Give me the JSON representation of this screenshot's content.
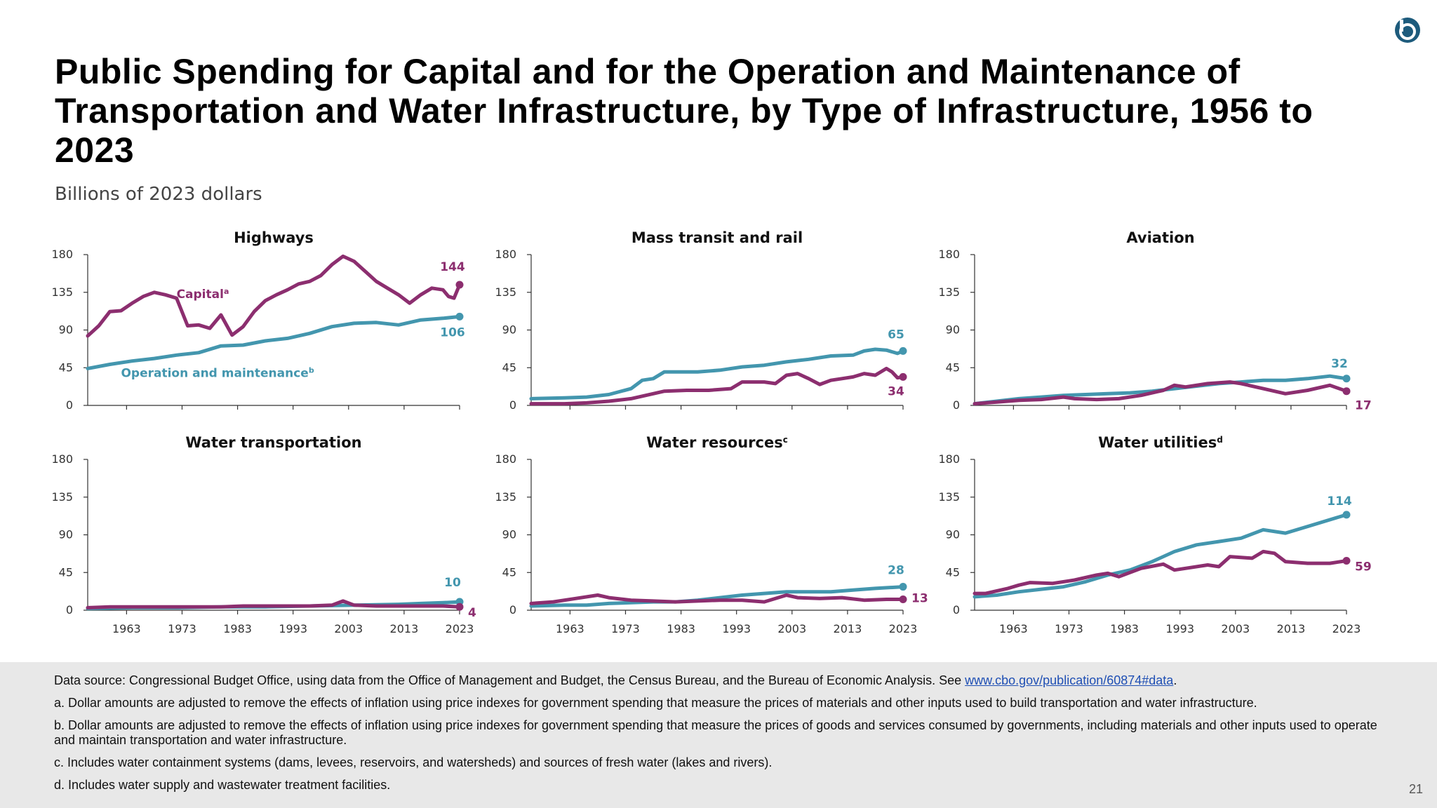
{
  "header": {
    "title": "Public Spending for Capital and for the Operation and Maintenance of Transportation and Water Infrastructure, by Type of Infrastructure, 1956 to 2023",
    "subtitle": "Billions of 2023 dollars",
    "logo_icon": "cbo-logo-icon"
  },
  "colors": {
    "capital": "#8c2e6f",
    "om": "#4396ae"
  },
  "chart_data": [
    {
      "type": "line",
      "title": "Highways",
      "ylim": [
        0,
        180
      ],
      "yticks": [
        0,
        45,
        90,
        135,
        180
      ],
      "xticks": [
        1963,
        1973,
        1983,
        1993,
        2003,
        2013,
        2023
      ],
      "xlim": [
        1956,
        2023
      ],
      "series": [
        {
          "name": "Capital",
          "label": "Capital",
          "sup": "a",
          "end_value": 144,
          "x": [
            1956,
            1958,
            1960,
            1962,
            1964,
            1966,
            1968,
            1970,
            1972,
            1974,
            1976,
            1978,
            1980,
            1982,
            1984,
            1986,
            1988,
            1990,
            1992,
            1994,
            1996,
            1998,
            2000,
            2002,
            2004,
            2006,
            2008,
            2010,
            2012,
            2014,
            2016,
            2018,
            2020,
            2021,
            2022,
            2023
          ],
          "values": [
            83,
            95,
            112,
            113,
            122,
            130,
            135,
            132,
            128,
            95,
            96,
            92,
            108,
            84,
            94,
            112,
            125,
            132,
            138,
            145,
            148,
            155,
            168,
            178,
            172,
            160,
            148,
            140,
            132,
            122,
            132,
            140,
            138,
            130,
            128,
            144
          ]
        },
        {
          "name": "Operation and maintenance",
          "label": "Operation and maintenance",
          "sup": "b",
          "end_value": 106,
          "x": [
            1956,
            1960,
            1964,
            1968,
            1972,
            1976,
            1980,
            1984,
            1988,
            1992,
            1996,
            2000,
            2004,
            2008,
            2012,
            2016,
            2020,
            2023
          ],
          "values": [
            44,
            49,
            53,
            56,
            60,
            63,
            71,
            72,
            77,
            80,
            86,
            94,
            98,
            99,
            96,
            102,
            104,
            106
          ]
        }
      ]
    },
    {
      "type": "line",
      "title": "Mass transit and rail",
      "ylim": [
        0,
        180
      ],
      "yticks": [
        0,
        45,
        90,
        135,
        180
      ],
      "xticks": [
        1963,
        1973,
        1983,
        1993,
        2003,
        2013,
        2023
      ],
      "xlim": [
        1956,
        2023
      ],
      "series": [
        {
          "name": "Capital",
          "end_value": 34,
          "x": [
            1956,
            1962,
            1966,
            1970,
            1974,
            1978,
            1980,
            1984,
            1988,
            1992,
            1994,
            1998,
            2000,
            2002,
            2004,
            2006,
            2008,
            2010,
            2012,
            2014,
            2016,
            2018,
            2020,
            2021,
            2022,
            2023
          ],
          "values": [
            2,
            2,
            3,
            5,
            8,
            14,
            17,
            18,
            18,
            20,
            28,
            28,
            26,
            36,
            38,
            32,
            25,
            30,
            32,
            34,
            38,
            36,
            44,
            40,
            33,
            34
          ]
        },
        {
          "name": "Operation and maintenance",
          "end_value": 65,
          "x": [
            1956,
            1962,
            1966,
            1970,
            1974,
            1976,
            1978,
            1980,
            1982,
            1986,
            1990,
            1994,
            1998,
            2002,
            2006,
            2010,
            2014,
            2016,
            2018,
            2020,
            2022,
            2023
          ],
          "values": [
            8,
            9,
            10,
            13,
            20,
            30,
            32,
            40,
            40,
            40,
            42,
            46,
            48,
            52,
            55,
            59,
            60,
            65,
            67,
            66,
            62,
            65
          ]
        }
      ]
    },
    {
      "type": "line",
      "title": "Aviation",
      "ylim": [
        0,
        180
      ],
      "yticks": [
        0,
        45,
        90,
        135,
        180
      ],
      "xticks": [
        1963,
        1973,
        1983,
        1993,
        2003,
        2013,
        2023
      ],
      "xlim": [
        1956,
        2023
      ],
      "series": [
        {
          "name": "Capital",
          "end_value": 17,
          "x": [
            1956,
            1960,
            1964,
            1968,
            1972,
            1974,
            1978,
            1982,
            1986,
            1990,
            1992,
            1994,
            1998,
            2002,
            2004,
            2008,
            2012,
            2016,
            2020,
            2023
          ],
          "values": [
            2,
            4,
            6,
            7,
            10,
            8,
            7,
            8,
            12,
            18,
            24,
            22,
            26,
            28,
            26,
            20,
            14,
            18,
            24,
            17
          ]
        },
        {
          "name": "Operation and maintenance",
          "end_value": 32,
          "x": [
            1956,
            1960,
            1964,
            1968,
            1972,
            1976,
            1980,
            1984,
            1988,
            1992,
            1996,
            2000,
            2004,
            2008,
            2012,
            2016,
            2020,
            2023
          ],
          "values": [
            2,
            5,
            8,
            10,
            12,
            13,
            14,
            15,
            17,
            20,
            23,
            26,
            28,
            30,
            30,
            32,
            35,
            32
          ]
        }
      ]
    },
    {
      "type": "line",
      "title": "Water transportation",
      "ylim": [
        0,
        180
      ],
      "yticks": [
        0,
        45,
        90,
        135,
        180
      ],
      "xticks": [
        1963,
        1973,
        1983,
        1993,
        2003,
        2013,
        2023
      ],
      "xlim": [
        1956,
        2023
      ],
      "series": [
        {
          "name": "Capital",
          "end_value": 4,
          "x": [
            1956,
            1960,
            1964,
            1968,
            1972,
            1976,
            1980,
            1984,
            1988,
            1992,
            1996,
            2000,
            2002,
            2004,
            2008,
            2012,
            2016,
            2020,
            2023
          ],
          "values": [
            3,
            4,
            4,
            4,
            4,
            4,
            4,
            5,
            5,
            5,
            5,
            6,
            11,
            6,
            5,
            5,
            5,
            5,
            4
          ]
        },
        {
          "name": "Operation and maintenance",
          "end_value": 10,
          "x": [
            1956,
            1964,
            1972,
            1980,
            1988,
            1996,
            2004,
            2012,
            2016,
            2020,
            2023
          ],
          "values": [
            2,
            3,
            3,
            4,
            4,
            5,
            6,
            7,
            8,
            9,
            10
          ]
        }
      ]
    },
    {
      "type": "line",
      "title": "Water resources",
      "sup": "c",
      "ylim": [
        0,
        180
      ],
      "yticks": [
        0,
        45,
        90,
        135,
        180
      ],
      "xticks": [
        1963,
        1973,
        1983,
        1993,
        2003,
        2013,
        2023
      ],
      "xlim": [
        1956,
        2023
      ],
      "series": [
        {
          "name": "Capital",
          "end_value": 13,
          "x": [
            1956,
            1960,
            1964,
            1968,
            1970,
            1974,
            1978,
            1982,
            1986,
            1990,
            1994,
            1998,
            2002,
            2004,
            2008,
            2012,
            2016,
            2020,
            2023
          ],
          "values": [
            8,
            10,
            14,
            18,
            15,
            12,
            11,
            10,
            11,
            12,
            12,
            10,
            18,
            15,
            14,
            15,
            12,
            13,
            13
          ]
        },
        {
          "name": "Operation and maintenance",
          "end_value": 28,
          "x": [
            1956,
            1962,
            1966,
            1970,
            1974,
            1978,
            1982,
            1986,
            1990,
            1994,
            1998,
            2002,
            2006,
            2010,
            2014,
            2018,
            2023
          ],
          "values": [
            5,
            6,
            6,
            8,
            9,
            10,
            10,
            12,
            15,
            18,
            20,
            22,
            22,
            22,
            24,
            26,
            28
          ]
        }
      ]
    },
    {
      "type": "line",
      "title": "Water utilities",
      "sup": "d",
      "ylim": [
        0,
        180
      ],
      "yticks": [
        0,
        45,
        90,
        135,
        180
      ],
      "xticks": [
        1963,
        1973,
        1983,
        1993,
        2003,
        2013,
        2023
      ],
      "xlim": [
        1956,
        2023
      ],
      "series": [
        {
          "name": "Capital",
          "end_value": 59,
          "x": [
            1956,
            1958,
            1962,
            1964,
            1966,
            1970,
            1974,
            1978,
            1980,
            1982,
            1986,
            1990,
            1992,
            1994,
            1998,
            2000,
            2002,
            2006,
            2008,
            2010,
            2012,
            2016,
            2020,
            2023
          ],
          "values": [
            20,
            20,
            26,
            30,
            33,
            32,
            36,
            42,
            44,
            40,
            50,
            55,
            48,
            50,
            54,
            52,
            64,
            62,
            70,
            68,
            58,
            56,
            56,
            59
          ]
        },
        {
          "name": "Operation and maintenance",
          "end_value": 114,
          "x": [
            1956,
            1960,
            1964,
            1968,
            1972,
            1976,
            1980,
            1984,
            1988,
            1992,
            1996,
            2000,
            2004,
            2008,
            2012,
            2016,
            2020,
            2023
          ],
          "values": [
            16,
            18,
            22,
            25,
            28,
            34,
            42,
            48,
            58,
            70,
            78,
            82,
            86,
            96,
            92,
            100,
            108,
            114
          ]
        }
      ]
    }
  ],
  "footer": {
    "source_prefix": "Data source: Congressional Budget Office, using data from the Office of Management and Budget, the Census Bureau, and the Bureau of Economic Analysis. See ",
    "source_link": "www.cbo.gov/publication/60874#data",
    "source_suffix": ".",
    "note_a": "a. Dollar amounts are adjusted to remove the effects of inflation using price indexes for government spending that measure the prices of materials and other inputs used to build transportation and water infrastructure.",
    "note_b": "b. Dollar amounts are adjusted to remove the effects of inflation using price indexes for government spending that measure the prices of goods and services consumed by governments, including materials and other inputs used to operate and maintain transportation and water infrastructure.",
    "note_c": "c. Includes water containment systems (dams, levees, reservoirs, and watersheds) and sources of fresh water (lakes and rivers).",
    "note_d": "d. Includes water supply and wastewater treatment facilities.",
    "page_number": "21"
  }
}
